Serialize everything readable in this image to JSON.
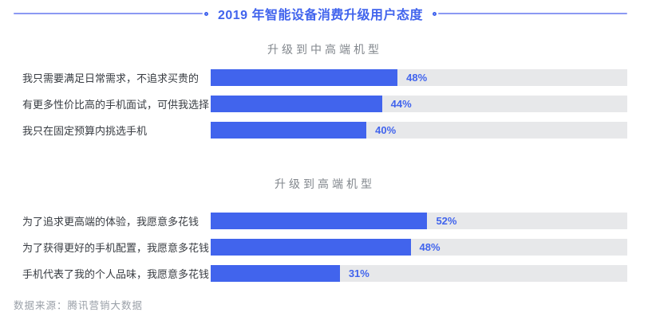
{
  "title": "2019 年智能设备消费升级用户态度",
  "source": "数据来源：腾讯营销大数据",
  "colors": {
    "accent": "#4164ed",
    "divider_line": "#8b99f3",
    "track": "#e7e8ea",
    "label_text": "#383c42",
    "subtitle_text": "#82878d",
    "source_text": "#9aa0a8"
  },
  "chart_data": [
    {
      "type": "bar",
      "orientation": "horizontal",
      "title": "升级到中高端机型",
      "categories": [
        "我只需要满足日常需求，不追求买贵的",
        "有更多性价比高的手机面试，可供我选择",
        "我只在固定预算内挑选手机"
      ],
      "values": [
        48,
        44,
        40
      ],
      "value_suffix": "%",
      "value_labels": [
        "48%",
        "44%",
        "40%"
      ],
      "xlim": [
        0,
        107
      ],
      "grid": false,
      "legend": "none"
    },
    {
      "type": "bar",
      "orientation": "horizontal",
      "title": "升级到高端机型",
      "categories": [
        "为了追求更高端的体验，我愿意多花钱",
        "为了获得更好的手机配置，我愿意多花钱",
        "手机代表了我的个人品味，我愿意多花钱"
      ],
      "values": [
        52,
        48,
        31
      ],
      "value_suffix": "%",
      "value_labels": [
        "52%",
        "48%",
        "31%"
      ],
      "xlim": [
        0,
        100
      ],
      "grid": false,
      "legend": "none"
    }
  ]
}
